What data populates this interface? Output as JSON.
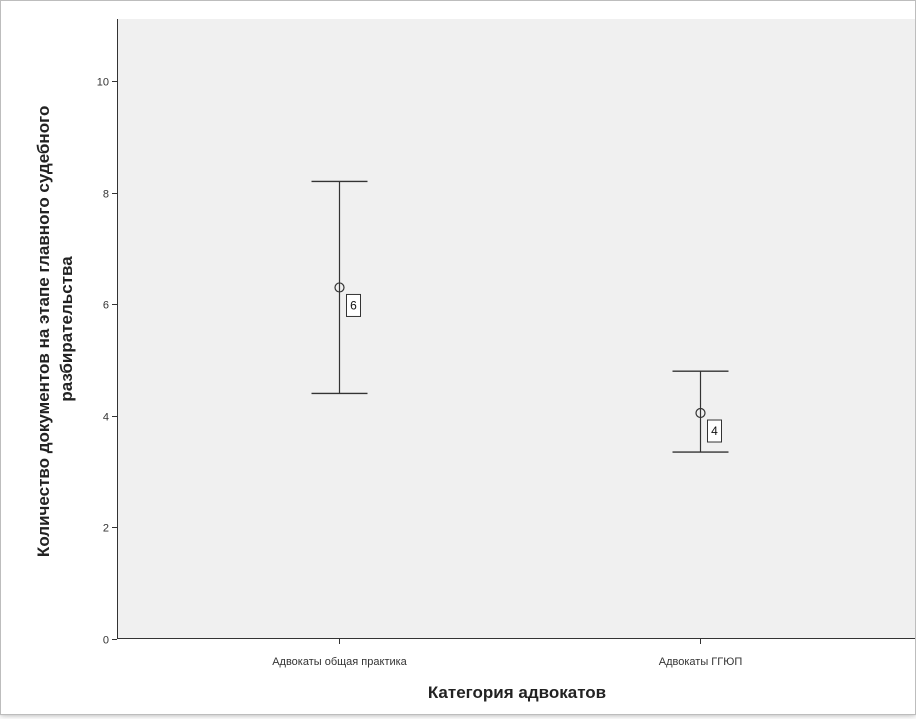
{
  "chart_data": {
    "type": "errorbar",
    "categories": [
      "Адвокаты общая практика",
      "Адвокаты ГГЮП"
    ],
    "series": [
      {
        "means": [
          6.3,
          4.05
        ],
        "lower": [
          4.4,
          3.35
        ],
        "upper": [
          8.2,
          4.8
        ],
        "labels": [
          "6",
          "4"
        ]
      }
    ],
    "xlabel": "Категория адвокатов",
    "ylabel": [
      "Количество документов на этапе главного судебного",
      "разбирательства"
    ],
    "ylim": [
      0,
      11
    ],
    "yticks": [
      0,
      2,
      4,
      6,
      8,
      10
    ],
    "grid": false,
    "colors": {
      "plot_bg": "#f0f0f0",
      "ink": "#333333",
      "label_box_bg": "#ffffff"
    }
  }
}
